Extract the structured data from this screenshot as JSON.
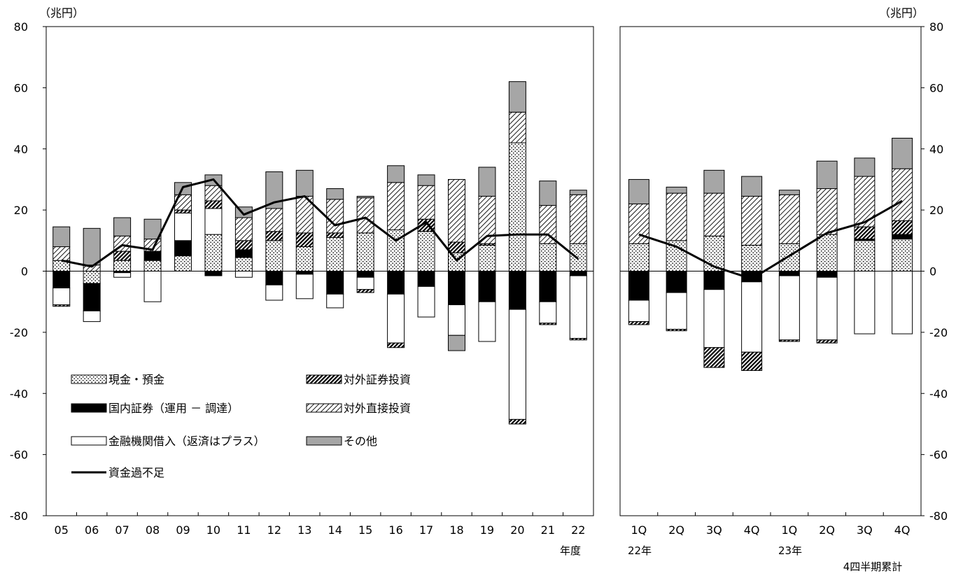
{
  "chart_data": [
    {
      "type": "bar",
      "stacked": true,
      "unit_label": "（兆円）",
      "xlabel": "年度",
      "ylim": [
        -80,
        80
      ],
      "yticks": [
        80,
        60,
        40,
        20,
        0,
        -20,
        -40,
        -60,
        -80
      ],
      "ytick_labels": [
        "80",
        "60",
        "40",
        "20",
        "0",
        "-20",
        "-40",
        "-60",
        "-80"
      ],
      "categories": [
        "05",
        "06",
        "07",
        "08",
        "09",
        "10",
        "11",
        "12",
        "13",
        "14",
        "15",
        "16",
        "17",
        "18",
        "19",
        "20",
        "21",
        "22"
      ],
      "series": [
        {
          "name": "現金・預金",
          "pattern": "dots",
          "values": [
            3.5,
            -4,
            3.5,
            3.5,
            5,
            12,
            4.5,
            10,
            8,
            11,
            12.5,
            13.5,
            13,
            6,
            8.5,
            42,
            9,
            9
          ]
        },
        {
          "name": "国内証券（運用 － 調達）",
          "pattern": "solid-black",
          "values": [
            -5.5,
            -9,
            -0.5,
            3,
            5,
            -1.5,
            2.5,
            -4.5,
            -1,
            -7.5,
            -2,
            -7.5,
            -5,
            -11,
            -10,
            -12.5,
            -10,
            -1.5
          ]
        },
        {
          "name": "金融機関借入（返済はプラス）",
          "pattern": "white",
          "values": [
            -5.5,
            -3.5,
            -1.5,
            -10,
            9,
            8.5,
            -2,
            -5,
            -8,
            -4.5,
            -4,
            -16,
            -10,
            -10,
            -13,
            -36,
            -7,
            -20.5
          ]
        },
        {
          "name": "対外証券投資",
          "pattern": "dense-hatch",
          "values": [
            -0.5,
            0,
            3,
            0,
            1,
            2.5,
            3,
            3,
            4.5,
            1.5,
            -1,
            -1.5,
            4,
            3.5,
            0.5,
            -1.5,
            -0.5,
            -0.5
          ]
        },
        {
          "name": "対外直接投資",
          "pattern": "light-hatch",
          "values": [
            4.5,
            2,
            5,
            4,
            5,
            5,
            7.5,
            7.5,
            12,
            11,
            11.5,
            15.5,
            11,
            20.5,
            15.5,
            10,
            12.5,
            16
          ]
        },
        {
          "name": "その他",
          "pattern": "gray",
          "values": [
            6.5,
            12,
            6,
            6.5,
            4,
            3.5,
            3.5,
            12,
            8.5,
            3.5,
            0.5,
            5.5,
            3.5,
            -5,
            9.5,
            10,
            8,
            1.5
          ]
        }
      ],
      "line": {
        "name": "資金過不足",
        "values": [
          3.5,
          1.5,
          8.5,
          7,
          27.5,
          30,
          18.5,
          22.5,
          24.5,
          15,
          17.5,
          10,
          16,
          3.5,
          11.5,
          12,
          12,
          4
        ]
      }
    },
    {
      "type": "bar",
      "stacked": true,
      "unit_label": "（兆円）",
      "xlabel": "4四半期累計",
      "year_labels": [
        {
          "label": "22年",
          "at": 0
        },
        {
          "label": "23年",
          "at": 4
        }
      ],
      "ylim": [
        -80,
        80
      ],
      "yticks": [
        80,
        60,
        40,
        20,
        0,
        -20,
        -40,
        -60,
        -80
      ],
      "ytick_labels": [
        "80",
        "60",
        "40",
        "20",
        "0",
        "-20",
        "-40",
        "-60",
        "-80"
      ],
      "categories": [
        "1Q",
        "2Q",
        "3Q",
        "4Q",
        "1Q",
        "2Q",
        "3Q",
        "4Q"
      ],
      "series": [
        {
          "name": "現金・預金",
          "pattern": "dots",
          "values": [
            9,
            10,
            11.5,
            8.5,
            9,
            12,
            10,
            10.5
          ]
        },
        {
          "name": "国内証券（運用 － 調達）",
          "pattern": "solid-black",
          "values": [
            -9.5,
            -7,
            -6,
            -3.5,
            -1.5,
            -2,
            0.5,
            1.5
          ]
        },
        {
          "name": "金融機関借入（返済はプラス）",
          "pattern": "white",
          "values": [
            -7,
            -12,
            -19,
            -23,
            -21,
            -20.5,
            -20.5,
            -20.5
          ]
        },
        {
          "name": "対外証券投資",
          "pattern": "dense-hatch",
          "values": [
            -1,
            -0.5,
            -6.5,
            -6,
            -0.5,
            -1,
            4,
            4.5
          ]
        },
        {
          "name": "対外直接投資",
          "pattern": "light-hatch",
          "values": [
            13,
            15.5,
            14,
            16,
            16,
            15,
            16.5,
            17
          ]
        },
        {
          "name": "その他",
          "pattern": "gray",
          "values": [
            8,
            2,
            7.5,
            6.5,
            1.5,
            9,
            6,
            10
          ]
        }
      ],
      "line": {
        "name": "資金過不足",
        "values": [
          12,
          8,
          1.5,
          -2.5,
          5,
          12.5,
          16,
          23
        ]
      }
    }
  ],
  "legend": {
    "items": [
      {
        "label": "現金・預金",
        "pattern": "dots"
      },
      {
        "label": "対外証券投資",
        "pattern": "dense-hatch"
      },
      {
        "label": "国内証券（運用 － 調達）",
        "pattern": "solid-black"
      },
      {
        "label": "対外直接投資",
        "pattern": "light-hatch"
      },
      {
        "label": "金融機関借入（返済はプラス）",
        "pattern": "white"
      },
      {
        "label": "その他",
        "pattern": "gray"
      },
      {
        "label": "資金過不足",
        "pattern": "line"
      }
    ]
  },
  "colors": {
    "gray": "#a6a6a6",
    "black": "#000000",
    "white": "#ffffff"
  }
}
